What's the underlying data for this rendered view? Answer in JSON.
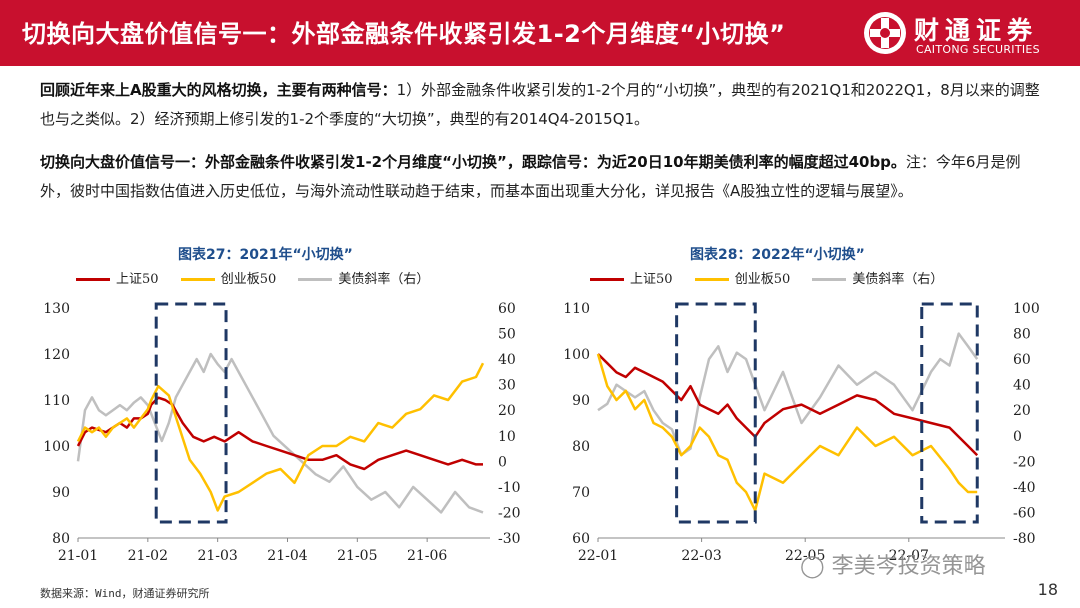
{
  "header": {
    "title": "切换向大盘价值信号一：外部金融条件收紧引发1-2个月维度“小切换”",
    "logo_cn": "财通证券",
    "logo_en": "CAITONG SECURITIES",
    "brand_color": "#c8102e"
  },
  "paragraph1": {
    "bold": "回顾近年来上A股重大的风格切换，主要有两种信号：",
    "text": "1）外部金融条件收紧引发的1-2个月的“小切换”，典型的有2021Q1和2022Q1，8月以来的调整也与之类似。2）经济预期上修引发的1-2个季度的“大切换”，典型的有2014Q4-2015Q1。"
  },
  "paragraph2": {
    "bold": "切换向大盘价值信号一：外部金融条件收紧引发1-2个月维度“小切换”，跟踪信号：为近20日10年期美债利率的幅度超过40bp。",
    "text": "注：今年6月是例外，彼时中国指数估值进入历史低位，与海外流动性联动趋于结束，而基本面出现重大分化，详见报告《A股独立性的逻辑与展望》。"
  },
  "footer": {
    "source": "数据来源：Wind，财通证券研究所",
    "page": "18",
    "watermark": "李美岑投资策略"
  },
  "legend": {
    "s1": "上证50",
    "s2": "创业板50",
    "s3": "美债斜率（右）",
    "colors": {
      "s1": "#c00000",
      "s2": "#ffc000",
      "s3": "#bfbfbf",
      "box": "#1f3864"
    }
  },
  "chart_data": [
    {
      "type": "line",
      "title": "图表27：2021年“小切换”",
      "x_ticks": [
        "21-01",
        "21-02",
        "21-03",
        "21-04",
        "21-05",
        "21-06"
      ],
      "ylim_left": [
        80,
        130
      ],
      "yticks_left": [
        "80",
        "90",
        "100",
        "110",
        "120",
        "130"
      ],
      "ylim_right": [
        -30,
        60
      ],
      "yticks_right": [
        "-30",
        "-20",
        "-10",
        "0",
        "10",
        "20",
        "30",
        "40",
        "50",
        "60"
      ],
      "highlight_range": [
        1.12,
        2.12
      ],
      "series": [
        {
          "name": "上证50",
          "axis": "left",
          "x": [
            0,
            0.1,
            0.2,
            0.3,
            0.4,
            0.5,
            0.6,
            0.7,
            0.8,
            0.9,
            1.0,
            1.05,
            1.15,
            1.25,
            1.35,
            1.5,
            1.65,
            1.8,
            1.95,
            2.1,
            2.3,
            2.5,
            2.7,
            2.9,
            3.1,
            3.3,
            3.5,
            3.7,
            3.9,
            4.1,
            4.3,
            4.5,
            4.7,
            4.9,
            5.1,
            5.3,
            5.5,
            5.7,
            5.8
          ],
          "values": [
            100,
            103,
            104,
            103.5,
            103,
            104,
            105,
            104,
            106,
            106,
            107,
            109,
            110.5,
            110,
            109,
            105,
            102,
            101,
            102,
            101,
            103,
            101,
            100,
            99,
            98,
            97,
            97,
            98,
            96,
            95,
            97,
            98,
            99,
            98,
            97,
            96,
            97,
            96,
            96
          ]
        },
        {
          "name": "创业板50",
          "axis": "left",
          "x": [
            0,
            0.1,
            0.2,
            0.3,
            0.4,
            0.5,
            0.6,
            0.7,
            0.8,
            0.9,
            1.0,
            1.05,
            1.15,
            1.3,
            1.45,
            1.6,
            1.75,
            1.9,
            2.0,
            2.1,
            2.3,
            2.5,
            2.7,
            2.9,
            3.1,
            3.3,
            3.5,
            3.7,
            3.9,
            4.1,
            4.3,
            4.5,
            4.7,
            4.9,
            5.1,
            5.3,
            5.5,
            5.7,
            5.8
          ],
          "values": [
            101,
            104,
            103,
            104,
            102,
            104,
            105,
            106,
            104,
            106,
            108,
            110,
            113,
            111,
            104,
            97,
            94,
            90,
            86,
            89,
            90,
            92,
            94,
            95,
            92,
            98,
            100,
            100,
            102,
            101,
            105,
            104,
            107,
            108,
            111,
            110,
            114,
            115,
            118
          ]
        },
        {
          "name": "美债斜率（右）",
          "axis": "right",
          "x": [
            0,
            0.1,
            0.2,
            0.3,
            0.4,
            0.5,
            0.6,
            0.7,
            0.8,
            0.9,
            1.0,
            1.1,
            1.2,
            1.3,
            1.4,
            1.5,
            1.6,
            1.7,
            1.8,
            1.9,
            2.0,
            2.1,
            2.2,
            2.4,
            2.6,
            2.8,
            3.0,
            3.2,
            3.4,
            3.6,
            3.8,
            4.0,
            4.2,
            4.4,
            4.6,
            4.8,
            5.0,
            5.2,
            5.4,
            5.6,
            5.8
          ],
          "values": [
            0,
            20,
            25,
            20,
            18,
            20,
            22,
            20,
            23,
            25,
            22,
            15,
            8,
            15,
            25,
            30,
            35,
            40,
            35,
            42,
            38,
            35,
            40,
            30,
            20,
            10,
            5,
            0,
            -5,
            -8,
            -2,
            -10,
            -15,
            -12,
            -18,
            -10,
            -15,
            -20,
            -12,
            -18,
            -20
          ]
        }
      ]
    },
    {
      "type": "line",
      "title": "图表28：2022年“小切换”",
      "x_ticks": [
        "22-01",
        "22-03",
        "22-05",
        "22-07"
      ],
      "ylim_left": [
        60,
        110
      ],
      "yticks_left": [
        "60",
        "70",
        "80",
        "90",
        "100",
        "110"
      ],
      "ylim_right": [
        -80,
        100
      ],
      "yticks_right": [
        "-80",
        "-60",
        "-40",
        "-20",
        "0",
        "20",
        "40",
        "60",
        "80",
        "100"
      ],
      "highlight_ranges": [
        [
          0.85,
          1.7
        ],
        [
          3.5,
          4.1
        ]
      ],
      "series": [
        {
          "name": "上证50",
          "axis": "left",
          "x": [
            0,
            0.1,
            0.2,
            0.3,
            0.4,
            0.5,
            0.6,
            0.7,
            0.8,
            0.9,
            1.0,
            1.1,
            1.2,
            1.3,
            1.4,
            1.5,
            1.6,
            1.7,
            1.8,
            2.0,
            2.2,
            2.4,
            2.6,
            2.8,
            3.0,
            3.2,
            3.4,
            3.6,
            3.8,
            4.0,
            4.1
          ],
          "values": [
            100,
            98,
            96,
            95,
            97,
            96,
            95,
            94,
            92,
            90,
            93,
            89,
            88,
            87,
            89,
            86,
            84,
            82,
            85,
            88,
            89,
            87,
            89,
            91,
            90,
            87,
            86,
            85,
            84,
            80,
            78
          ]
        },
        {
          "name": "创业板50",
          "axis": "left",
          "x": [
            0,
            0.1,
            0.2,
            0.3,
            0.4,
            0.5,
            0.6,
            0.7,
            0.8,
            0.9,
            1.0,
            1.1,
            1.2,
            1.3,
            1.4,
            1.5,
            1.6,
            1.7,
            1.8,
            2.0,
            2.2,
            2.4,
            2.6,
            2.8,
            3.0,
            3.2,
            3.4,
            3.6,
            3.8,
            3.9,
            4.0,
            4.1
          ],
          "values": [
            100,
            93,
            90,
            92,
            88,
            90,
            85,
            84,
            82,
            78,
            80,
            84,
            82,
            78,
            77,
            72,
            70,
            66,
            74,
            72,
            76,
            80,
            78,
            84,
            80,
            82,
            78,
            80,
            75,
            72,
            70,
            70
          ]
        },
        {
          "name": "美债斜率（右）",
          "axis": "right",
          "x": [
            0,
            0.1,
            0.2,
            0.3,
            0.4,
            0.5,
            0.6,
            0.7,
            0.8,
            0.9,
            1.0,
            1.1,
            1.2,
            1.3,
            1.4,
            1.5,
            1.6,
            1.7,
            1.8,
            2.0,
            2.2,
            2.4,
            2.6,
            2.8,
            3.0,
            3.2,
            3.4,
            3.6,
            3.7,
            3.8,
            3.9,
            4.0,
            4.1
          ],
          "values": [
            20,
            25,
            40,
            35,
            30,
            35,
            20,
            10,
            5,
            -15,
            -10,
            30,
            60,
            70,
            50,
            65,
            60,
            40,
            20,
            50,
            10,
            30,
            55,
            40,
            50,
            40,
            20,
            50,
            60,
            55,
            80,
            70,
            60
          ]
        }
      ]
    }
  ]
}
